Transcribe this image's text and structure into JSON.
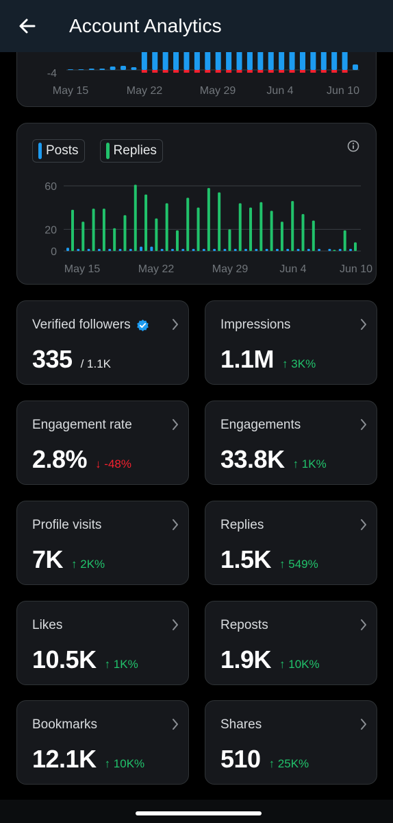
{
  "header": {
    "title": "Account Analytics",
    "back_icon": "arrow-left-icon"
  },
  "top_chart": {
    "y_tick": "-4",
    "x_ticks": [
      "May 15",
      "May 22",
      "May 29",
      "Jun 4",
      "Jun 10"
    ],
    "colors": {
      "positive": "#1d9bf0",
      "negative": "#f4212e",
      "axis": "#71767b",
      "grid": "#3a3f44"
    }
  },
  "chart_data": {
    "type": "bar",
    "title": "",
    "legend": [
      "Posts",
      "Replies"
    ],
    "x_tick_labels": [
      "May 15",
      "May 22",
      "May 29",
      "Jun 4",
      "Jun 10"
    ],
    "y_tick_labels": [
      "60",
      "20",
      "0"
    ],
    "ylim": [
      0,
      66
    ],
    "categories": [
      "May 15",
      "May 16",
      "May 17",
      "May 18",
      "May 19",
      "May 20",
      "May 21",
      "May 22",
      "May 23",
      "May 24",
      "May 25",
      "May 26",
      "May 27",
      "May 28",
      "May 29",
      "May 30",
      "May 31",
      "Jun 1",
      "Jun 2",
      "Jun 3",
      "Jun 4",
      "Jun 5",
      "Jun 6",
      "Jun 7",
      "Jun 8",
      "Jun 9",
      "Jun 10",
      "Jun 11"
    ],
    "series": [
      {
        "name": "Posts",
        "color": "#1d9bf0",
        "values": [
          3,
          2,
          2,
          2,
          2,
          2,
          2,
          4,
          4,
          2,
          2,
          2,
          2,
          2,
          2,
          2,
          2,
          2,
          2,
          2,
          2,
          2,
          2,
          2,
          2,
          2,
          2,
          2
        ]
      },
      {
        "name": "Replies",
        "color": "#21c26b",
        "values": [
          38,
          27,
          39,
          39,
          21,
          33,
          61,
          52,
          30,
          44,
          19,
          49,
          40,
          58,
          54,
          20,
          44,
          40,
          45,
          37,
          27,
          46,
          34,
          28,
          0,
          1,
          19,
          8
        ]
      }
    ],
    "grid": true
  },
  "legend_colors": {
    "Posts": "#1d9bf0",
    "Replies": "#21c26b"
  },
  "metrics": [
    {
      "label": "Verified followers",
      "value": "335",
      "secondary": "/ 1.1K",
      "verified_icon": "verified-badge-icon"
    },
    {
      "label": "Impressions",
      "value": "1.1M",
      "change": "↑ 3K%",
      "direction": "up"
    },
    {
      "label": "Engagement rate",
      "value": "2.8%",
      "change": "↓ -48%",
      "direction": "down"
    },
    {
      "label": "Engagements",
      "value": "33.8K",
      "change": "↑ 1K%",
      "direction": "up"
    },
    {
      "label": "Profile visits",
      "value": "7K",
      "change": "↑ 2K%",
      "direction": "up"
    },
    {
      "label": "Replies",
      "value": "1.5K",
      "change": "↑ 549%",
      "direction": "up"
    },
    {
      "label": "Likes",
      "value": "10.5K",
      "change": "↑ 1K%",
      "direction": "up"
    },
    {
      "label": "Reposts",
      "value": "1.9K",
      "change": "↑ 10K%",
      "direction": "up"
    },
    {
      "label": "Bookmarks",
      "value": "12.1K",
      "change": "↑ 10K%",
      "direction": "up"
    },
    {
      "label": "Shares",
      "value": "510",
      "change": "↑ 25K%",
      "direction": "up"
    }
  ]
}
